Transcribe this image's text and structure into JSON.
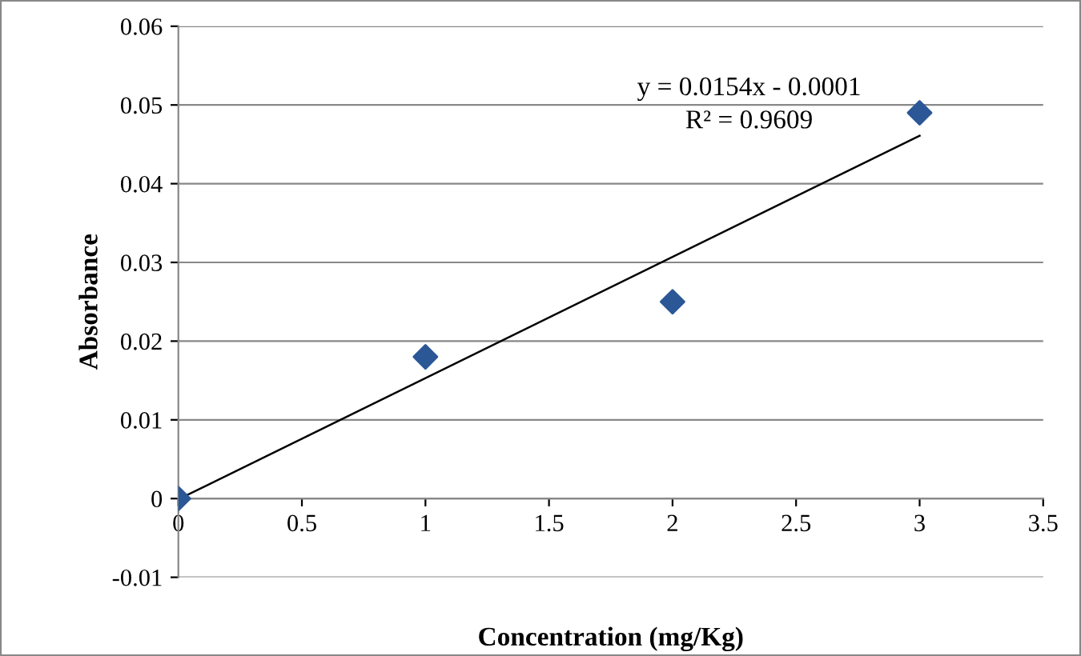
{
  "chart_data": {
    "type": "scatter",
    "xlabel": "Concentration (mg/Kg)",
    "ylabel": "Absorbance",
    "xlim": [
      0,
      3.5
    ],
    "xticks": [
      0,
      0.5,
      1,
      1.5,
      2,
      2.5,
      3,
      3.5
    ],
    "ylim": [
      -0.01,
      0.06
    ],
    "yticks": [
      -0.01,
      0,
      0.01,
      0.02,
      0.03,
      0.04,
      0.05,
      0.06
    ],
    "grid": "y",
    "legend": false,
    "marker": "diamond",
    "series": [
      {
        "color": "#2b5797",
        "x": [
          0,
          1,
          2,
          3
        ],
        "values": [
          0,
          0.018,
          0.025,
          0.049
        ]
      },
      {
        "type": "line",
        "color": "#000000",
        "marker": "none",
        "x": [
          0,
          3
        ],
        "values": [
          -0.0001,
          0.0461
        ]
      }
    ],
    "annotations": [
      "y = 0.0154x - 0.0001",
      "R² = 0.9609"
    ]
  }
}
